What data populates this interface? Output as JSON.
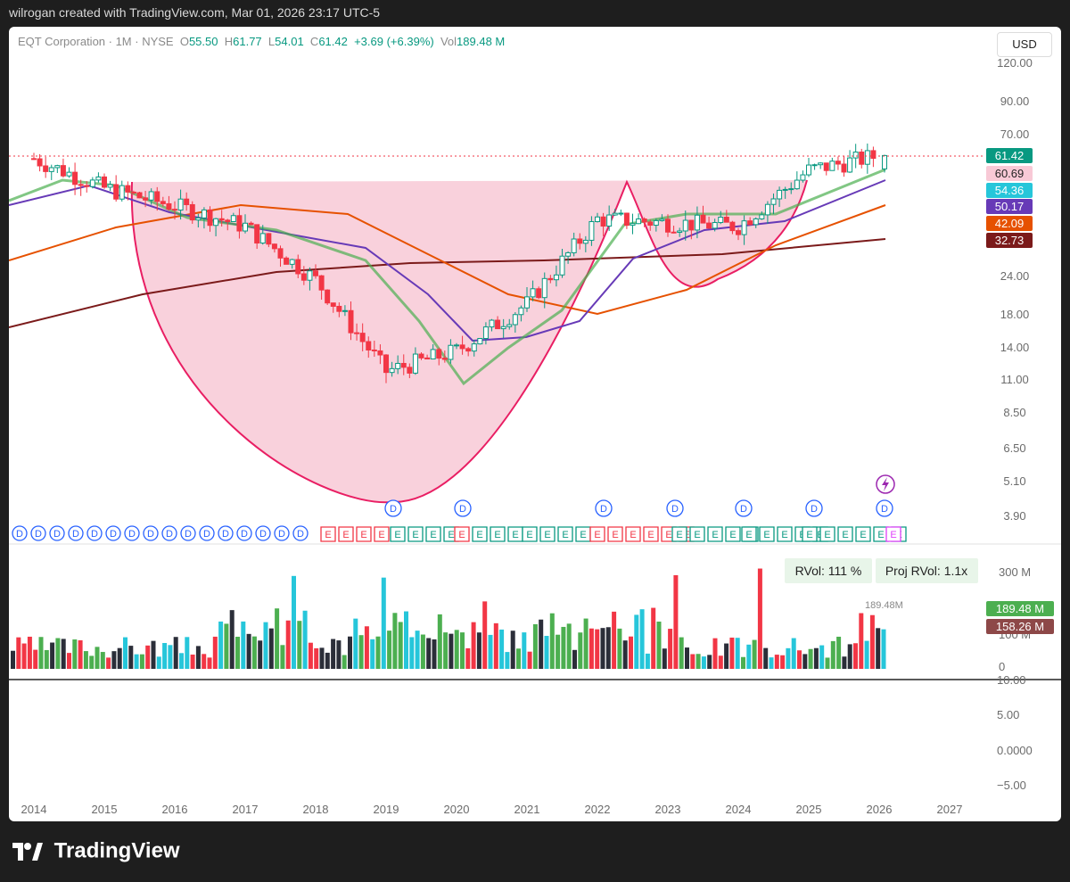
{
  "topbar": {
    "attribution": "wilrogan created with TradingView.com, Mar 01, 2026 23:17 UTC-5"
  },
  "legend": {
    "symbol": "EQT Corporation · 1M · NYSE",
    "open_label": "O",
    "open": "55.50",
    "high_label": "H",
    "high": "61.77",
    "low_label": "L",
    "low": "54.01",
    "close_label": "C",
    "close": "61.42",
    "change": "+3.69 (+6.39%)",
    "vol_label": "Vol",
    "volume": "189.48 M"
  },
  "currency_button": "USD",
  "price_axis": [
    "120.00",
    "90.00",
    "70.00",
    "24.00",
    "18.00",
    "14.00",
    "11.00",
    "8.50",
    "6.50",
    "5.10",
    "3.90"
  ],
  "price_badges": [
    {
      "text": "61.42",
      "color": "#089981"
    },
    {
      "text": "60.69",
      "color": "#f8c9d6"
    },
    {
      "text": "54.36",
      "color": "#26c6da"
    },
    {
      "text": "50.17",
      "color": "#673ab7"
    },
    {
      "text": "42.09",
      "color": "#e65100"
    },
    {
      "text": "32.73",
      "color": "#7b1a1a"
    }
  ],
  "volume_axis": [
    "300 M",
    "100 M",
    "0"
  ],
  "volume_badges": [
    {
      "text": "189.48 M",
      "color": "#4caf50"
    },
    {
      "text": "158.26 M",
      "color": "#8d4848"
    }
  ],
  "volume_peak_label": "189.48M",
  "rvol": "RVol: 111 %",
  "proj_rvol": "Proj RVol: 1.1x",
  "osc_axis": [
    "10.00",
    "5.00",
    "0.0000",
    "−5.00"
  ],
  "time_axis": [
    "2014",
    "2015",
    "2016",
    "2017",
    "2018",
    "2019",
    "2020",
    "2021",
    "2022",
    "2023",
    "2024",
    "2025",
    "2026",
    "2027"
  ],
  "dividend_marker": "D",
  "earnings_marker": "E",
  "brand": "TradingView",
  "colors": {
    "up": "#089981",
    "down": "#f23645",
    "cup_fill": "#f8c9d6",
    "cup_line": "#e91e63",
    "background": "#ffffff",
    "frame": "#1e1e1e"
  },
  "chart_data": {
    "type": "candlestick",
    "title": "EQT Corporation · 1M · NYSE",
    "interval": "1M",
    "yscale": "log",
    "xlabel": "",
    "ylabel": "",
    "x_range": [
      "2014",
      "2027"
    ],
    "last_bar": {
      "open": 55.5,
      "high": 61.77,
      "low": 54.01,
      "close": 61.42,
      "volume": "189.48 M"
    },
    "key_levels": {
      "cup_rim": 60.69,
      "ma1": 54.36,
      "ma2": 50.17,
      "ma3": 42.09,
      "ma4": 32.73
    },
    "approx_yearly_close": [
      {
        "x": "2014",
        "y": 60
      },
      {
        "x": "2015",
        "y": 48
      },
      {
        "x": "2016",
        "y": 42
      },
      {
        "x": "2017",
        "y": 36
      },
      {
        "x": "2018",
        "y": 24
      },
      {
        "x": "2019",
        "y": 12
      },
      {
        "x": "2020",
        "y": 14
      },
      {
        "x": "2021",
        "y": 20
      },
      {
        "x": "2022",
        "y": 38
      },
      {
        "x": "2023",
        "y": 37
      },
      {
        "x": "2024",
        "y": 36
      },
      {
        "x": "2025",
        "y": 55
      },
      {
        "x": "2026",
        "y": 61.42
      }
    ]
  }
}
